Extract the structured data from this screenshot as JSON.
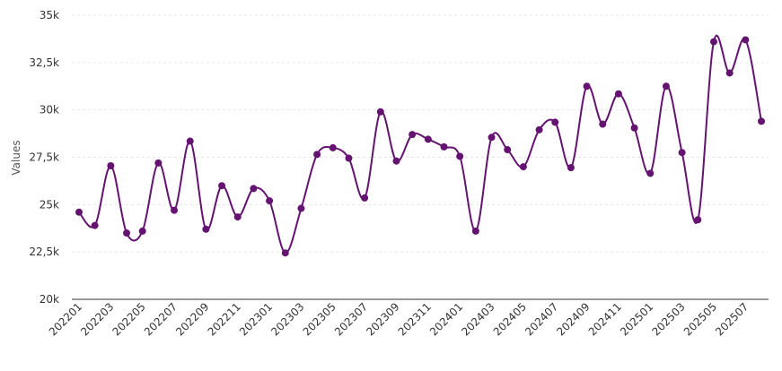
{
  "chart_data": {
    "type": "line",
    "title": "",
    "xlabel": "",
    "ylabel": "Values",
    "ylim": [
      20000,
      35000
    ],
    "yticks": [
      20000,
      22500,
      25000,
      27500,
      30000,
      32500,
      35000
    ],
    "ytick_labels": [
      "20k",
      "22,5k",
      "25k",
      "27,5k",
      "30k",
      "32,5k",
      "35k"
    ],
    "grid": true,
    "color": "#641470",
    "categories": [
      "202201",
      "202202",
      "202203",
      "202204",
      "202205",
      "202206",
      "202207",
      "202208",
      "202209",
      "202210",
      "202211",
      "202212",
      "202301",
      "202302",
      "202303",
      "202304",
      "202305",
      "202306",
      "202307",
      "202308",
      "202309",
      "202310",
      "202311",
      "202312",
      "202401",
      "202402",
      "202403",
      "202404",
      "202405",
      "202406",
      "202407",
      "202408",
      "202409",
      "202410",
      "202411",
      "202412",
      "202501",
      "202502",
      "202503",
      "202504",
      "202505",
      "202506",
      "202507",
      "202508"
    ],
    "values": [
      24600,
      23900,
      27050,
      23500,
      23600,
      27200,
      24700,
      28350,
      23700,
      26000,
      24350,
      25850,
      25200,
      22450,
      24800,
      27650,
      28000,
      27450,
      25350,
      29900,
      27300,
      28700,
      28450,
      28050,
      27550,
      23600,
      28550,
      27900,
      27000,
      28950,
      29350,
      26950,
      31250,
      29250,
      30850,
      29050,
      26650,
      31250,
      27750,
      24200,
      33600,
      31950,
      33700,
      29400
    ]
  }
}
